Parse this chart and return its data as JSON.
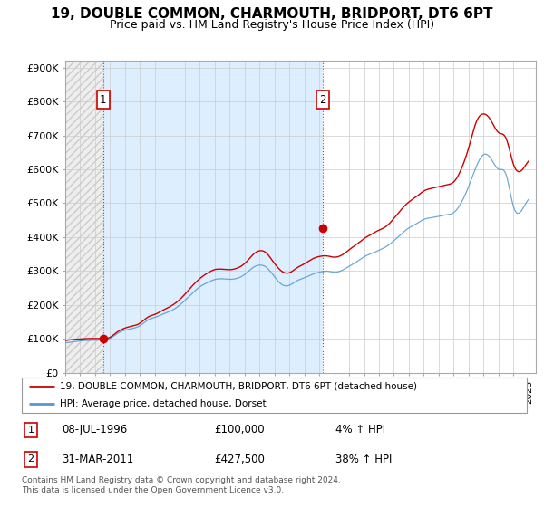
{
  "title": "19, DOUBLE COMMON, CHARMOUTH, BRIDPORT, DT6 6PT",
  "subtitle": "Price paid vs. HM Land Registry's House Price Index (HPI)",
  "title_fontsize": 11,
  "subtitle_fontsize": 9,
  "xlim": [
    1994.0,
    2025.5
  ],
  "ylim": [
    0,
    920000
  ],
  "yticks": [
    0,
    100000,
    200000,
    300000,
    400000,
    500000,
    600000,
    700000,
    800000,
    900000
  ],
  "ytick_labels": [
    "£0",
    "£100K",
    "£200K",
    "£300K",
    "£400K",
    "£500K",
    "£600K",
    "£700K",
    "£800K",
    "£900K"
  ],
  "xticks": [
    1994,
    1995,
    1996,
    1997,
    1998,
    1999,
    2000,
    2001,
    2002,
    2003,
    2004,
    2005,
    2006,
    2007,
    2008,
    2009,
    2010,
    2011,
    2012,
    2013,
    2014,
    2015,
    2016,
    2017,
    2018,
    2019,
    2020,
    2021,
    2022,
    2023,
    2024,
    2025
  ],
  "property_color": "#cc0000",
  "hpi_color": "#5599cc",
  "hpi_color_light": "#aaccee",
  "shade_color": "#ddeeff",
  "background_color": "#ffffff",
  "grid_color": "#cccccc",
  "hatch_color": "#e8e8e8",
  "purchase1_x": 1996.53,
  "purchase1_y": 100000,
  "purchase2_x": 2011.25,
  "purchase2_y": 427500,
  "legend_label1": "19, DOUBLE COMMON, CHARMOUTH, BRIDPORT, DT6 6PT (detached house)",
  "legend_label2": "HPI: Average price, detached house, Dorset",
  "annotation1_date": "08-JUL-1996",
  "annotation1_price": "£100,000",
  "annotation1_hpi": "4% ↑ HPI",
  "annotation2_date": "31-MAR-2011",
  "annotation2_price": "£427,500",
  "annotation2_hpi": "38% ↑ HPI",
  "footnote": "Contains HM Land Registry data © Crown copyright and database right 2024.\nThis data is licensed under the Open Government Licence v3.0."
}
